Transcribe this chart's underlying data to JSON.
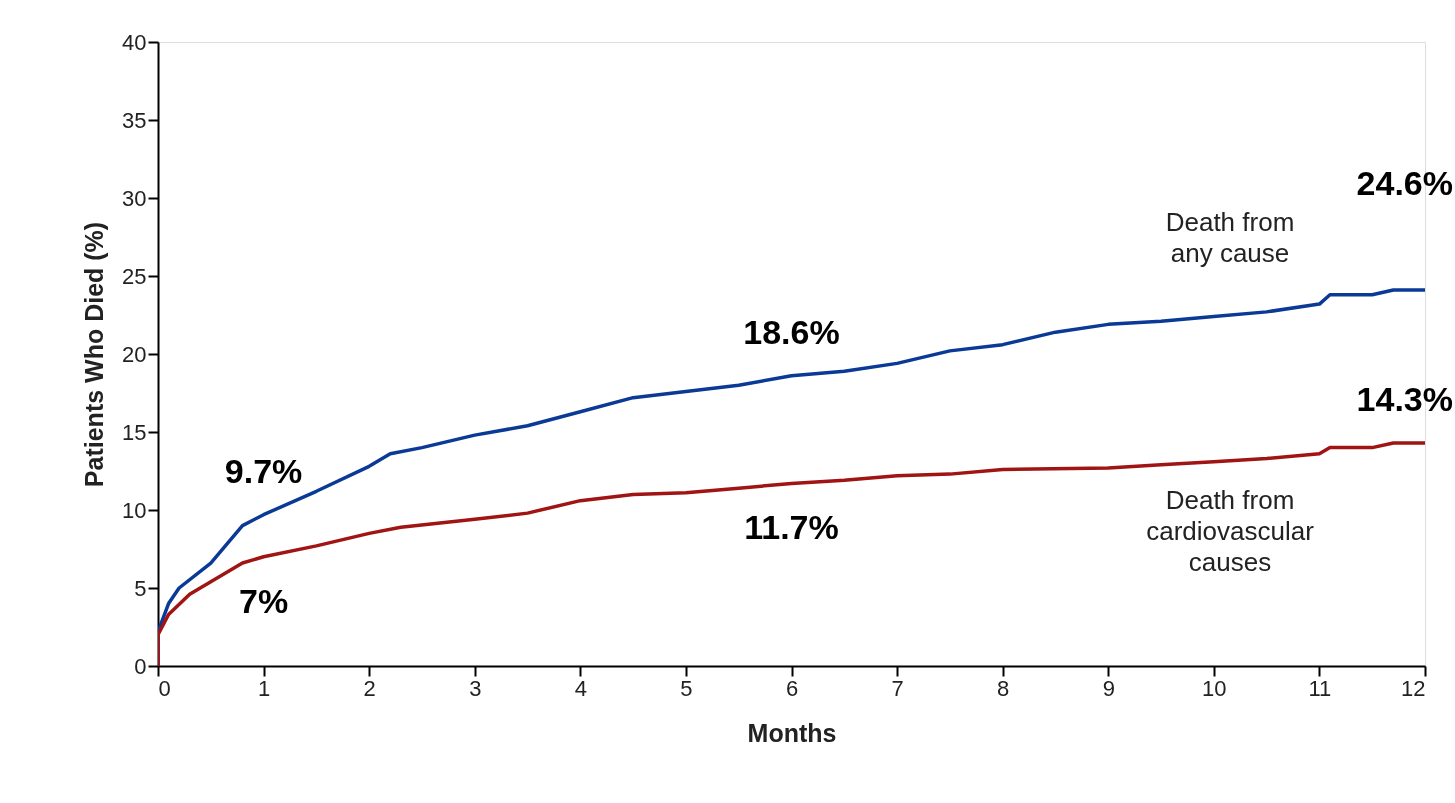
{
  "chart_data": {
    "type": "line",
    "xlabel": "Months",
    "ylabel": "Patients Who Died (%)",
    "xlim": [
      0,
      12
    ],
    "xticks": [
      0,
      1,
      2,
      3,
      4,
      5,
      6,
      7,
      8,
      9,
      10,
      11,
      12
    ],
    "ylim": [
      0,
      40
    ],
    "yticks": [
      0,
      5,
      10,
      15,
      20,
      25,
      30,
      35,
      40
    ],
    "grid": false,
    "legend": false,
    "marker": "none",
    "line_style": "solid",
    "series": [
      {
        "name": "Death from any cause",
        "color": "#0a3a96",
        "x": [
          0,
          0,
          0.1,
          0.2,
          0.5,
          0.8,
          1,
          1.5,
          2,
          2.2,
          2.5,
          3,
          3.5,
          4,
          4.5,
          5,
          5.5,
          6,
          6.5,
          7,
          7.5,
          8,
          8.5,
          9,
          9.5,
          10,
          10.5,
          11,
          11.1,
          11.5,
          11.7,
          12
        ],
        "values": [
          0,
          2.2,
          4,
          5,
          6.6,
          9,
          9.7,
          11.2,
          12.8,
          13.6,
          14,
          14.8,
          15.4,
          16.3,
          17.2,
          17.6,
          18,
          18.6,
          18.9,
          19.4,
          20.2,
          20.6,
          21.4,
          21.9,
          22.1,
          22.4,
          22.7,
          23.2,
          23.8,
          23.8,
          24.1,
          24.1
        ]
      },
      {
        "name": "Death from cardiovascular causes",
        "color": "#a01414",
        "x": [
          0,
          0,
          0.1,
          0.3,
          0.5,
          0.8,
          1,
          1.5,
          2,
          2.3,
          3,
          3.5,
          4,
          4.5,
          5,
          5.5,
          6,
          6.5,
          7,
          7.5,
          8,
          9,
          9.5,
          10,
          10.5,
          11,
          11.1,
          11.5,
          11.7,
          12
        ],
        "values": [
          0,
          2,
          3.3,
          4.6,
          5.4,
          6.6,
          7,
          7.7,
          8.5,
          8.9,
          9.4,
          9.8,
          10.6,
          11,
          11.1,
          11.4,
          11.7,
          11.9,
          12.2,
          12.3,
          12.6,
          12.7,
          12.9,
          13.1,
          13.3,
          13.6,
          14,
          14,
          14.3,
          14.3
        ]
      }
    ],
    "annotations": [
      {
        "text": "9.7%",
        "x": 1,
        "y": 9.7
      },
      {
        "text": "7%",
        "x": 1,
        "y": 7
      },
      {
        "text": "18.6%",
        "x": 6,
        "y": 18.6
      },
      {
        "text": "11.7%",
        "x": 6,
        "y": 11.7
      },
      "24.6%",
      {
        "text": "14.3%",
        "x": 12,
        "y": 14.3
      }
    ]
  }
}
